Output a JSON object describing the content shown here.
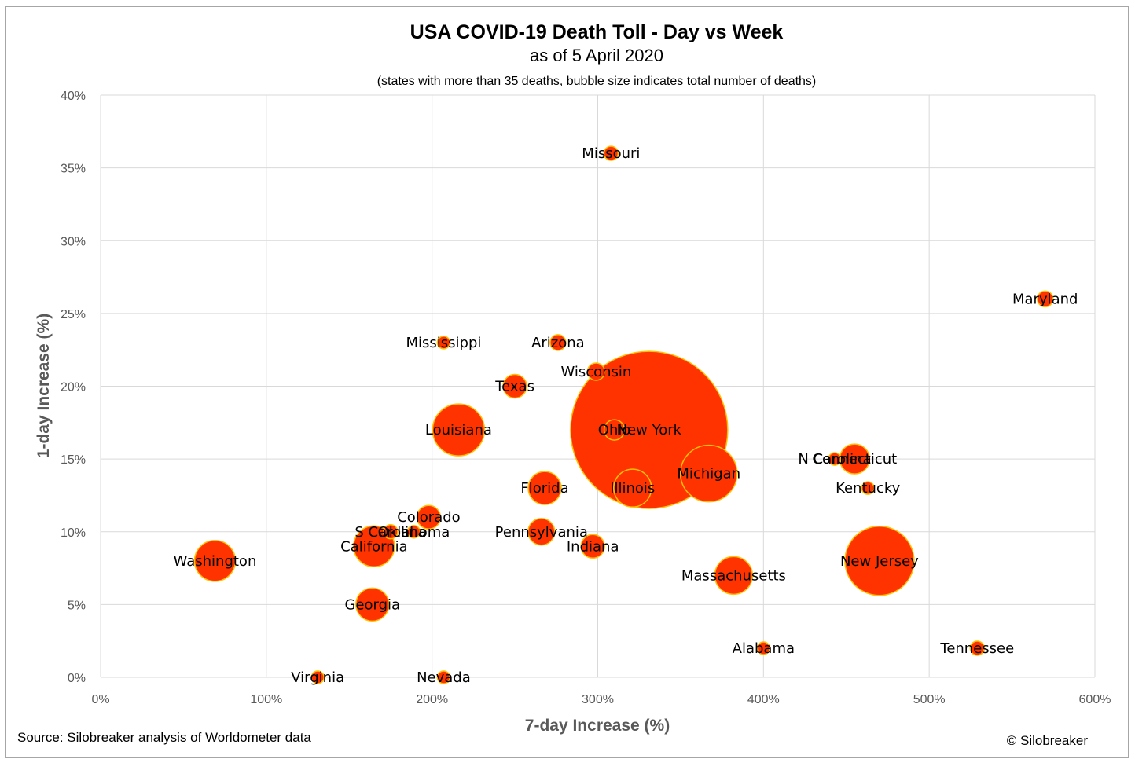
{
  "chart_data": {
    "type": "bubble",
    "title": "USA COVID-19 Death Toll - Day vs Week",
    "subtitle": "as of 5 April 2020",
    "note": "(states with more than 35 deaths, bubble size indicates total number of deaths)",
    "xlabel": "7-day Increase (%)",
    "ylabel": "1-day Increase (%)",
    "xlim": [
      0,
      600
    ],
    "ylim": [
      0,
      40
    ],
    "xticks": [
      "0%",
      "100%",
      "200%",
      "300%",
      "400%",
      "500%",
      "600%"
    ],
    "yticks": [
      "0%",
      "5%",
      "10%",
      "15%",
      "20%",
      "25%",
      "30%",
      "35%",
      "40%"
    ],
    "grid": true,
    "bubble_color": "#ff3300",
    "bubble_border_color": "#ffc000",
    "points": [
      {
        "name": "New York",
        "x": 331,
        "y": 17,
        "r": 100
      },
      {
        "name": "New Jersey",
        "x": 470,
        "y": 8,
        "r": 44
      },
      {
        "name": "Michigan",
        "x": 367,
        "y": 14,
        "r": 36
      },
      {
        "name": "Louisiana",
        "x": 216,
        "y": 17,
        "r": 33
      },
      {
        "name": "Washington",
        "x": 69,
        "y": 8,
        "r": 26
      },
      {
        "name": "California",
        "x": 165,
        "y": 9,
        "r": 26
      },
      {
        "name": "Massachusetts",
        "x": 382,
        "y": 7,
        "r": 24
      },
      {
        "name": "Illinois",
        "x": 321,
        "y": 13,
        "r": 24
      },
      {
        "name": "Georgia",
        "x": 164,
        "y": 5,
        "r": 21
      },
      {
        "name": "Florida",
        "x": 268,
        "y": 13,
        "r": 21
      },
      {
        "name": "Connecticut",
        "x": 455,
        "y": 15,
        "r": 19
      },
      {
        "name": "Pennsylvania",
        "x": 266,
        "y": 10,
        "r": 17
      },
      {
        "name": "Texas",
        "x": 250,
        "y": 20,
        "r": 15
      },
      {
        "name": "Colorado",
        "x": 198,
        "y": 11,
        "r": 15
      },
      {
        "name": "Indiana",
        "x": 297,
        "y": 9,
        "r": 15
      },
      {
        "name": "Ohio",
        "x": 310,
        "y": 17,
        "r": 13
      },
      {
        "name": "Wisconsin",
        "x": 299,
        "y": 21,
        "r": 11
      },
      {
        "name": "Arizona",
        "x": 276,
        "y": 23,
        "r": 10
      },
      {
        "name": "Maryland",
        "x": 570,
        "y": 26,
        "r": 10
      },
      {
        "name": "Missouri",
        "x": 308,
        "y": 36,
        "r": 9
      },
      {
        "name": "S Carolina",
        "x": 175,
        "y": 10,
        "r": 9
      },
      {
        "name": "Oklahoma",
        "x": 189,
        "y": 10,
        "r": 8
      },
      {
        "name": "Kentucky",
        "x": 463,
        "y": 13,
        "r": 8
      },
      {
        "name": "Tennessee",
        "x": 529,
        "y": 2,
        "r": 9
      },
      {
        "name": "Alabama",
        "x": 400,
        "y": 2,
        "r": 8
      },
      {
        "name": "Mississippi",
        "x": 207,
        "y": 23,
        "r": 8
      },
      {
        "name": "N Carolina",
        "x": 443,
        "y": 15,
        "r": 8
      },
      {
        "name": "Virginia",
        "x": 131,
        "y": 0,
        "r": 8
      },
      {
        "name": "Nevada",
        "x": 207,
        "y": 0,
        "r": 8
      }
    ]
  },
  "footer": {
    "source": "Source: Silobreaker analysis of Worldometer data",
    "copyright": "© Silobreaker"
  }
}
